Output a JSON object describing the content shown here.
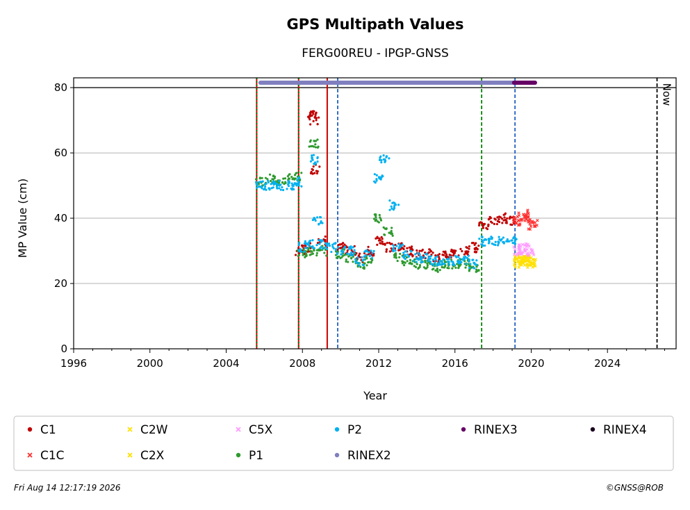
{
  "chart_data": {
    "type": "scatter",
    "title": "GPS Multipath Values",
    "subtitle": "FERG00REU - IPGP-GNSS",
    "xlabel": "Year",
    "ylabel": "MP Value (cm)",
    "xlim": [
      1996,
      2027.6
    ],
    "ylim": [
      0,
      83
    ],
    "xticks": [
      "1996",
      "2000",
      "2004",
      "2008",
      "2012",
      "2016",
      "2020",
      "2024"
    ],
    "yticks": [
      "0",
      "20",
      "40",
      "60",
      "80"
    ],
    "grid": "y",
    "legend_placement": "below",
    "now_label": "Now",
    "vertical_lines": [
      {
        "x": 2005.6,
        "style": "dotted-red-green"
      },
      {
        "x": 2007.8,
        "style": "dotted-red-green"
      },
      {
        "x": 2009.3,
        "style": "solid-red"
      },
      {
        "x": 2009.85,
        "style": "dashed-blue"
      },
      {
        "x": 2017.4,
        "style": "dashed-green"
      },
      {
        "x": 2019.15,
        "style": "dashed-blue"
      },
      {
        "x": 2026.6,
        "style": "dashed-black"
      }
    ],
    "series": [
      {
        "name": "C1",
        "marker": "dot",
        "color": "#c00000",
        "points": [
          [
            2007.9,
            30
          ],
          [
            2008.2,
            31
          ],
          [
            2008.5,
            72
          ],
          [
            2008.6,
            70
          ],
          [
            2008.7,
            55
          ],
          [
            2009.0,
            33
          ],
          [
            2010.0,
            31
          ],
          [
            2010.5,
            30
          ],
          [
            2011.0,
            28
          ],
          [
            2011.5,
            30
          ],
          [
            2012.0,
            33
          ],
          [
            2012.5,
            31
          ],
          [
            2013.0,
            31
          ],
          [
            2013.5,
            30
          ],
          [
            2014.0,
            29
          ],
          [
            2014.5,
            29
          ],
          [
            2015.0,
            28
          ],
          [
            2015.5,
            29
          ],
          [
            2016.0,
            29
          ],
          [
            2016.5,
            30
          ],
          [
            2017.0,
            31
          ],
          [
            2017.5,
            38
          ],
          [
            2018.0,
            39
          ],
          [
            2018.5,
            40
          ],
          [
            2018.9,
            39
          ]
        ]
      },
      {
        "name": "C1C",
        "marker": "x",
        "color": "#ff3030",
        "points": [
          [
            2019.3,
            39
          ],
          [
            2019.6,
            41
          ],
          [
            2019.9,
            40
          ],
          [
            2020.1,
            38
          ]
        ]
      },
      {
        "name": "C2W",
        "marker": "x",
        "color": "#ffe000",
        "points": [
          [
            2019.3,
            27
          ],
          [
            2019.6,
            28
          ],
          [
            2019.9,
            27
          ]
        ]
      },
      {
        "name": "C2X",
        "marker": "x",
        "color": "#ffe000",
        "points": [
          [
            2019.4,
            26
          ],
          [
            2019.7,
            27
          ],
          [
            2020.0,
            26
          ]
        ]
      },
      {
        "name": "C5X",
        "marker": "x",
        "color": "#ff99ff",
        "points": [
          [
            2019.3,
            30
          ],
          [
            2019.6,
            31
          ],
          [
            2019.9,
            30
          ]
        ]
      },
      {
        "name": "P1",
        "marker": "dot",
        "color": "#2e9a2e",
        "points": [
          [
            2005.8,
            51
          ],
          [
            2006.3,
            52
          ],
          [
            2006.8,
            51
          ],
          [
            2007.3,
            52
          ],
          [
            2007.7,
            53
          ],
          [
            2008.0,
            29
          ],
          [
            2008.4,
            30
          ],
          [
            2008.6,
            63
          ],
          [
            2009.0,
            30
          ],
          [
            2010.0,
            29
          ],
          [
            2010.5,
            28
          ],
          [
            2011.0,
            26
          ],
          [
            2011.5,
            27
          ],
          [
            2012.0,
            40
          ],
          [
            2012.5,
            36
          ],
          [
            2013.0,
            28
          ],
          [
            2013.5,
            27
          ],
          [
            2014.0,
            26
          ],
          [
            2014.5,
            26
          ],
          [
            2015.0,
            25
          ],
          [
            2015.5,
            26
          ],
          [
            2016.0,
            26
          ],
          [
            2016.5,
            26
          ],
          [
            2017.0,
            25
          ]
        ]
      },
      {
        "name": "P2",
        "marker": "dot",
        "color": "#00b0f0",
        "points": [
          [
            2005.8,
            50
          ],
          [
            2006.3,
            50
          ],
          [
            2006.8,
            50
          ],
          [
            2007.3,
            50
          ],
          [
            2007.7,
            51
          ],
          [
            2008.0,
            31
          ],
          [
            2008.4,
            32
          ],
          [
            2008.6,
            58
          ],
          [
            2008.8,
            39
          ],
          [
            2009.0,
            32
          ],
          [
            2009.5,
            31
          ],
          [
            2010.0,
            30
          ],
          [
            2010.5,
            30
          ],
          [
            2011.0,
            27
          ],
          [
            2011.5,
            29
          ],
          [
            2012.0,
            52
          ],
          [
            2012.3,
            58
          ],
          [
            2012.8,
            44
          ],
          [
            2013.0,
            31
          ],
          [
            2013.5,
            29
          ],
          [
            2014.0,
            28
          ],
          [
            2014.5,
            28
          ],
          [
            2015.0,
            27
          ],
          [
            2015.5,
            27
          ],
          [
            2016.0,
            27
          ],
          [
            2016.5,
            27
          ],
          [
            2017.0,
            26
          ],
          [
            2017.5,
            33
          ],
          [
            2018.0,
            33
          ],
          [
            2018.5,
            33
          ],
          [
            2019.0,
            33
          ]
        ]
      },
      {
        "name": "RINEX2",
        "marker": "dot",
        "color": "#7f7fbf",
        "points": [
          [
            2005.8,
            81.5
          ],
          [
            2019.1,
            81.5
          ]
        ]
      },
      {
        "name": "RINEX3",
        "marker": "dot",
        "color": "#660066",
        "points": [
          [
            2019.1,
            81.5
          ],
          [
            2020.2,
            81.5
          ]
        ]
      },
      {
        "name": "RINEX4",
        "marker": "dot",
        "color": "#1a0020",
        "points": []
      }
    ]
  },
  "footer": {
    "timestamp": "Fri Aug 14 12:17:19 2026",
    "credit": "©GNSS@ROB"
  }
}
